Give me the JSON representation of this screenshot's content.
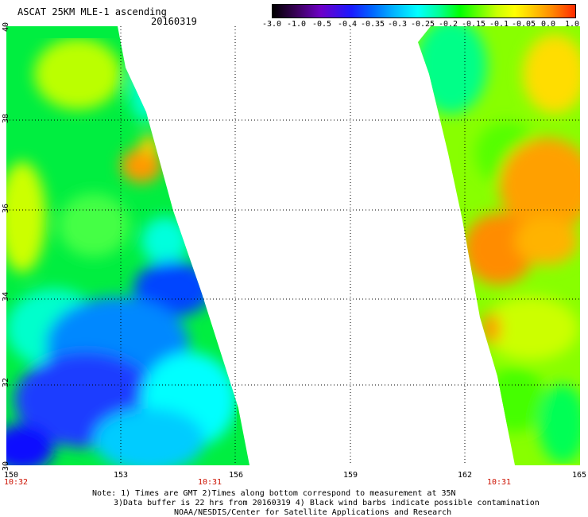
{
  "header": {
    "title": "ASCAT 25KM MLE-1 ascending",
    "date": "20160319"
  },
  "colorbar": {
    "ticks": [
      "-3.0",
      "-1.0",
      "-0.5",
      "-0.4",
      "-0.35",
      "-0.3",
      "-0.25",
      "-0.2",
      "-0.15",
      "-0.1",
      "-0.05",
      "0.0",
      "1.0"
    ]
  },
  "map": {
    "lat_labels": [
      "40",
      "38",
      "36",
      "34",
      "32",
      "30"
    ],
    "lon_labels": [
      "150",
      "153",
      "156",
      "159",
      "162",
      "165"
    ],
    "time_labels": [
      "10:32",
      "10:31",
      "10:31"
    ],
    "lat_range": [
      30,
      40
    ],
    "lon_range": [
      150,
      165
    ],
    "grid": "dotted",
    "colors": {
      "blue": "#0a32ff",
      "cyan": "#00ffff",
      "green": "#00ff00",
      "yellow": "#ffff00",
      "orange": "#ff9900",
      "red_time": "#cc1100"
    }
  },
  "footer": {
    "note1": "Note: 1) Times are GMT 2)Times along bottom correspond to measurement at 35N",
    "note2": "3)Data buffer is 22 hrs from 20160319 4) Black wind barbs indicate possible contamination",
    "credit": "NOAA/NESDIS/Center for Satellite Applications and Research"
  }
}
